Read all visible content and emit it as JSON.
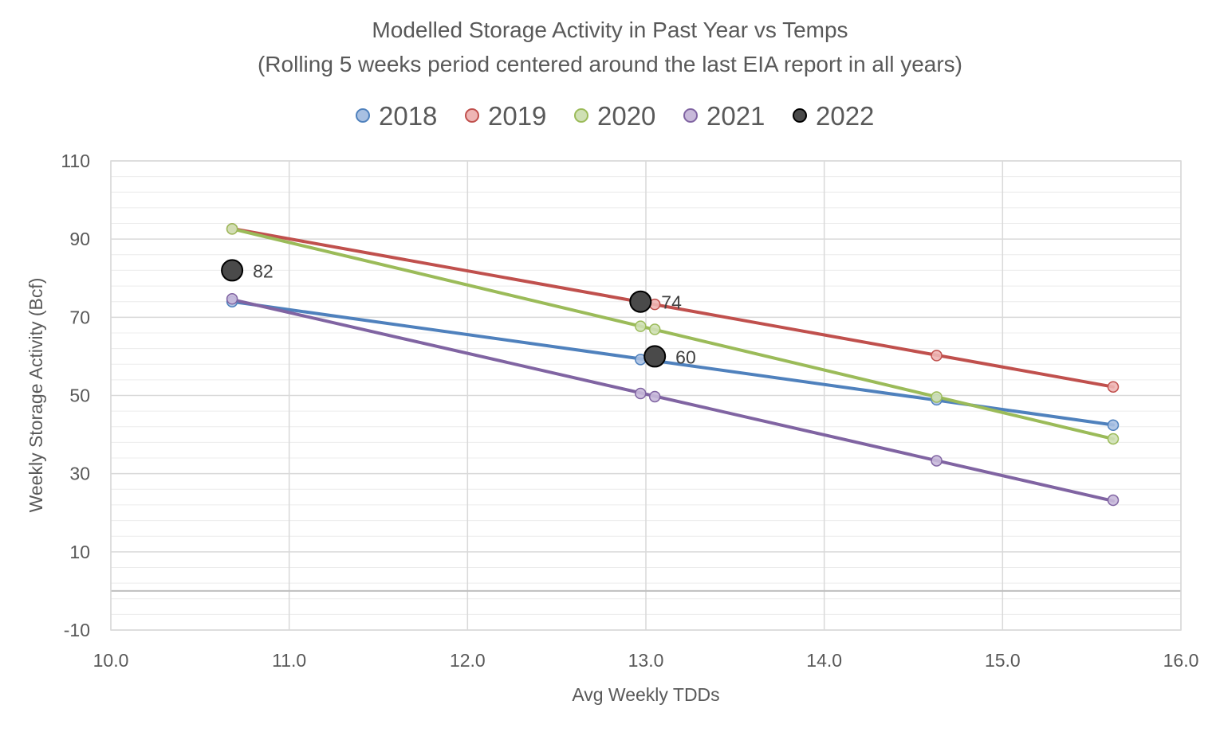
{
  "chart_data": {
    "type": "scatter",
    "title": "Modelled Storage Activity in Past Year vs Temps",
    "subtitle": "(Rolling 5 weeks period centered around the last EIA report in all years)",
    "xlabel": "Avg Weekly TDDs",
    "ylabel": "Weekly Storage  Activity (Bcf)",
    "xlim": [
      10.0,
      16.0
    ],
    "ylim": [
      -10,
      110
    ],
    "x_ticks": [
      "10.0",
      "11.0",
      "12.0",
      "13.0",
      "14.0",
      "15.0",
      "16.0"
    ],
    "y_ticks": [
      "-10",
      "10",
      "30",
      "50",
      "70",
      "90",
      "110"
    ],
    "grid": true,
    "legend_position": "top",
    "series": [
      {
        "name": "2018",
        "color": "#4f81bd",
        "fill": "#a8c0e2",
        "trendline": true,
        "points": [
          [
            10.68,
            74
          ],
          [
            12.97,
            59.2
          ],
          [
            13.05,
            59
          ],
          [
            14.63,
            48.9
          ],
          [
            15.62,
            42.4
          ]
        ]
      },
      {
        "name": "2019",
        "color": "#c0504d",
        "fill": "#eeb5b4",
        "trendline": true,
        "points": [
          [
            10.68,
            92.6
          ],
          [
            12.97,
            74.1
          ],
          [
            13.05,
            73.3
          ],
          [
            14.63,
            60.2
          ],
          [
            15.62,
            52.2
          ]
        ]
      },
      {
        "name": "2020",
        "color": "#9bbb59",
        "fill": "#cfe0b4",
        "trendline": true,
        "points": [
          [
            10.68,
            92.6
          ],
          [
            12.97,
            67.7
          ],
          [
            13.05,
            66.9
          ],
          [
            14.63,
            49.6
          ],
          [
            15.62,
            38.9
          ]
        ]
      },
      {
        "name": "2021",
        "color": "#8064a2",
        "fill": "#c8b9da",
        "trendline": true,
        "points": [
          [
            10.68,
            74.7
          ],
          [
            12.97,
            50.5
          ],
          [
            13.05,
            49.7
          ],
          [
            14.63,
            33.3
          ],
          [
            15.62,
            23.2
          ]
        ]
      },
      {
        "name": "2022",
        "color": "#000000",
        "fill": "#4a4a4a",
        "trendline": false,
        "points": [
          [
            10.68,
            82
          ],
          [
            12.97,
            74
          ],
          [
            13.05,
            60
          ]
        ],
        "labels": [
          "82",
          "74",
          "60"
        ]
      }
    ]
  }
}
